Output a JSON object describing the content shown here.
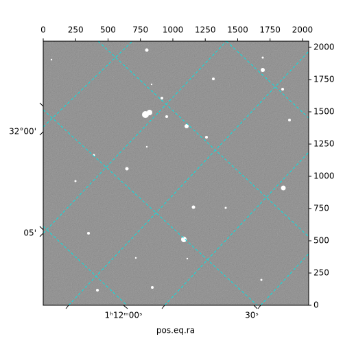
{
  "chart_data": {
    "type": "image",
    "xlabel": "pos.eq.ra",
    "xlim": [
      0,
      2048
    ],
    "ylim": [
      0,
      2048
    ],
    "xticks": [
      0,
      250,
      500,
      750,
      1000,
      1250,
      1500,
      1750,
      2000
    ],
    "yticks": [
      0,
      250,
      500,
      750,
      1000,
      1250,
      1500,
      1750,
      2000
    ],
    "ra_labels": [
      "1ʰ12ᵐ00ˢ",
      "30ˢ"
    ],
    "dec_labels": [
      "32°00'",
      "05'"
    ]
  }
}
